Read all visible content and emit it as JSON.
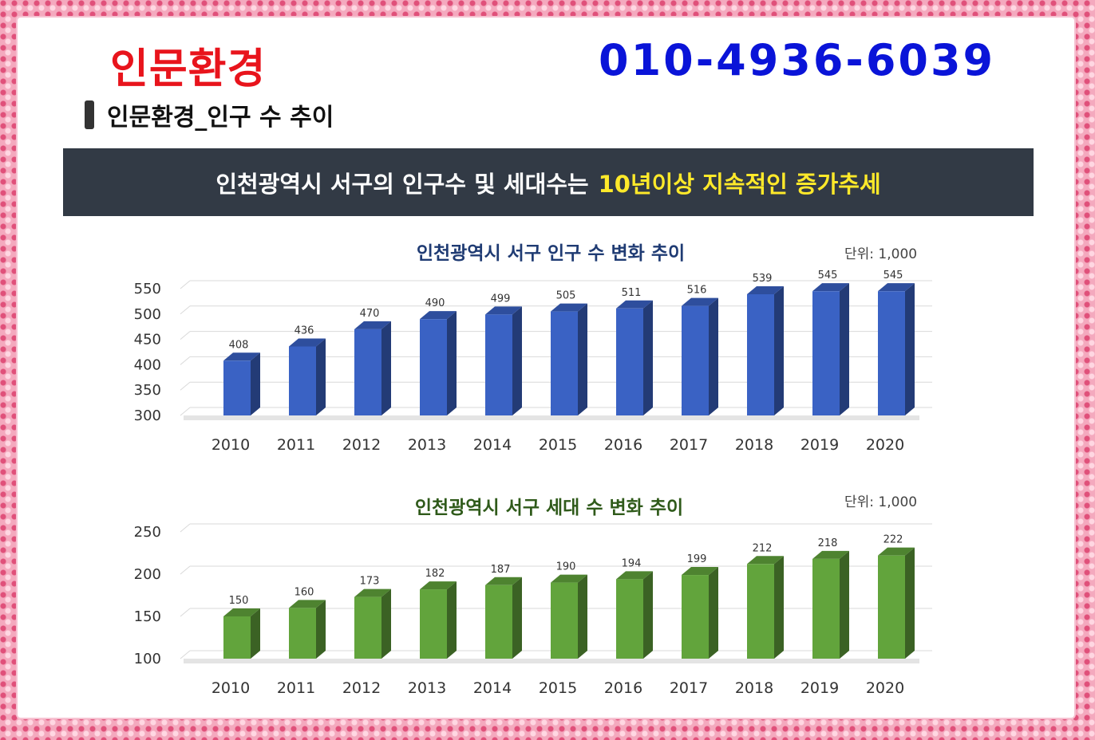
{
  "header": {
    "brand": "인문환경",
    "phone": "010-4936-6039",
    "section_title": "인문환경_인구 수 추이"
  },
  "banner": {
    "text": "인천광역시 서구의 인구수 및 세대수는",
    "highlight": "10년이상 지속적인 증가추세"
  },
  "colors": {
    "brand": "#e8141c",
    "phone": "#0a14d8",
    "banner_bg": "#323a45",
    "highlight": "#ffe92a",
    "population_bar": "#3a62c4",
    "household_bar": "#62a43c",
    "population_title": "#1f3b73",
    "household_title": "#2f5a1a"
  },
  "chart_data": [
    {
      "type": "bar",
      "title": "인천광역시 서구 인구 수 변화 추이",
      "unit": "단위: 1,000",
      "categories": [
        "2010",
        "2011",
        "2012",
        "2013",
        "2014",
        "2015",
        "2016",
        "2017",
        "2018",
        "2019",
        "2020"
      ],
      "values": [
        408,
        436,
        470,
        490,
        499,
        505,
        511,
        516,
        539,
        545,
        545
      ],
      "yticks": [
        "550",
        "500",
        "450",
        "400",
        "350",
        "300"
      ],
      "ylim": [
        300,
        550
      ],
      "grid": true
    },
    {
      "type": "bar",
      "title": "인천광역시 서구 세대 수 변화 추이",
      "unit": "단위: 1,000",
      "categories": [
        "2010",
        "2011",
        "2012",
        "2013",
        "2014",
        "2015",
        "2016",
        "2017",
        "2018",
        "2019",
        "2020"
      ],
      "values": [
        150,
        160,
        173,
        182,
        187,
        190,
        194,
        199,
        212,
        218,
        222
      ],
      "yticks": [
        "250",
        "200",
        "150",
        "100"
      ],
      "ylim": [
        100,
        250
      ],
      "grid": true
    }
  ]
}
